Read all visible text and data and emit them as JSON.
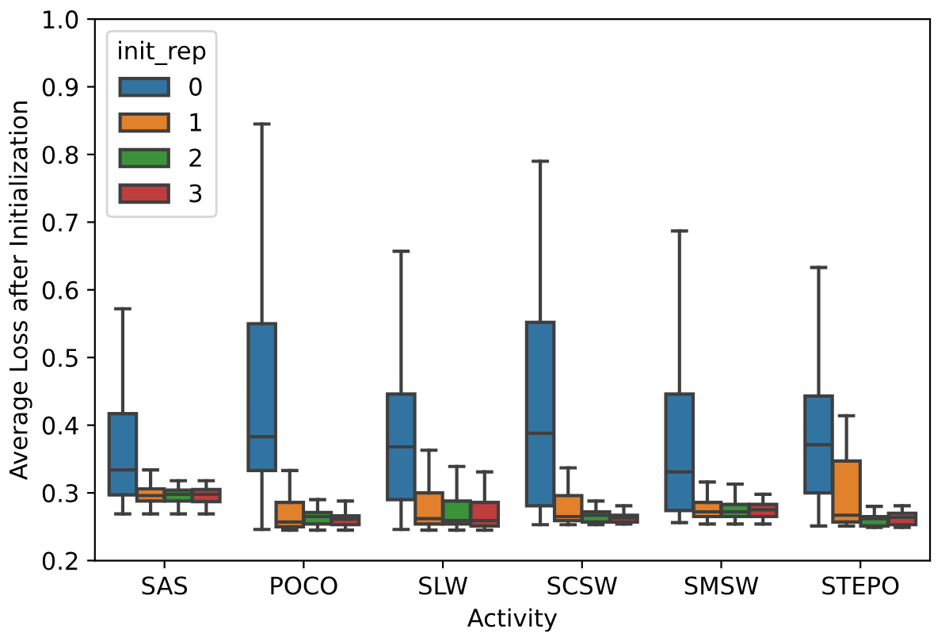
{
  "chart_data": {
    "type": "box",
    "xlabel": "Activity",
    "ylabel": "Average Loss after Initialization",
    "legend_title": "init_rep",
    "legend": "top left",
    "grid": false,
    "categories": [
      "SAS",
      "POCO",
      "SLW",
      "SCSW",
      "SMSW",
      "STEPO"
    ],
    "ylim": [
      0.2,
      1.0
    ],
    "yticks": [
      0.2,
      0.3,
      0.4,
      0.5,
      0.6,
      0.7,
      0.8,
      0.9,
      {
        "value": 1,
        "label": "1.0"
      }
    ],
    "series": [
      {
        "name": "0",
        "color": "#3274a1",
        "boxes": [
          {
            "low": 0.269,
            "q1": 0.297,
            "median": 0.334,
            "q3": 0.417,
            "high": 0.572
          },
          {
            "low": 0.246,
            "q1": 0.333,
            "median": 0.383,
            "q3": 0.55,
            "high": 0.845
          },
          {
            "low": 0.246,
            "q1": 0.29,
            "median": 0.368,
            "q3": 0.446,
            "high": 0.657
          },
          {
            "low": 0.253,
            "q1": 0.281,
            "median": 0.388,
            "q3": 0.552,
            "high": 0.79
          },
          {
            "low": 0.256,
            "q1": 0.274,
            "median": 0.331,
            "q3": 0.446,
            "high": 0.687
          },
          {
            "low": 0.251,
            "q1": 0.3,
            "median": 0.371,
            "q3": 0.443,
            "high": 0.633
          }
        ]
      },
      {
        "name": "1",
        "color": "#e1812c",
        "boxes": [
          {
            "low": 0.269,
            "q1": 0.288,
            "median": 0.296,
            "q3": 0.306,
            "high": 0.334
          },
          {
            "low": 0.245,
            "q1": 0.25,
            "median": 0.257,
            "q3": 0.286,
            "high": 0.333
          },
          {
            "low": 0.245,
            "q1": 0.254,
            "median": 0.262,
            "q3": 0.3,
            "high": 0.363
          },
          {
            "low": 0.253,
            "q1": 0.259,
            "median": 0.265,
            "q3": 0.296,
            "high": 0.337
          },
          {
            "low": 0.254,
            "q1": 0.265,
            "median": 0.272,
            "q3": 0.286,
            "high": 0.316
          },
          {
            "low": 0.251,
            "q1": 0.257,
            "median": 0.267,
            "q3": 0.347,
            "high": 0.414
          }
        ]
      },
      {
        "name": "2",
        "color": "#3a923a",
        "boxes": [
          {
            "low": 0.269,
            "q1": 0.288,
            "median": 0.298,
            "q3": 0.304,
            "high": 0.318
          },
          {
            "low": 0.245,
            "q1": 0.254,
            "median": 0.265,
            "q3": 0.271,
            "high": 0.29
          },
          {
            "low": 0.245,
            "q1": 0.254,
            "median": 0.259,
            "q3": 0.288,
            "high": 0.339
          },
          {
            "low": 0.253,
            "q1": 0.257,
            "median": 0.267,
            "q3": 0.272,
            "high": 0.288
          },
          {
            "low": 0.254,
            "q1": 0.265,
            "median": 0.272,
            "q3": 0.283,
            "high": 0.313
          },
          {
            "low": 0.249,
            "q1": 0.251,
            "median": 0.262,
            "q3": 0.265,
            "high": 0.28
          }
        ]
      },
      {
        "name": "3",
        "color": "#c03d3e",
        "boxes": [
          {
            "low": 0.269,
            "q1": 0.287,
            "median": 0.298,
            "q3": 0.305,
            "high": 0.318
          },
          {
            "low": 0.245,
            "q1": 0.253,
            "median": 0.261,
            "q3": 0.266,
            "high": 0.288
          },
          {
            "low": 0.245,
            "q1": 0.251,
            "median": 0.259,
            "q3": 0.286,
            "high": 0.331
          },
          {
            "low": 0.254,
            "q1": 0.257,
            "median": 0.263,
            "q3": 0.267,
            "high": 0.281
          },
          {
            "low": 0.254,
            "q1": 0.265,
            "median": 0.275,
            "q3": 0.283,
            "high": 0.298
          },
          {
            "low": 0.249,
            "q1": 0.253,
            "median": 0.264,
            "q3": 0.27,
            "high": 0.281
          }
        ]
      }
    ]
  }
}
